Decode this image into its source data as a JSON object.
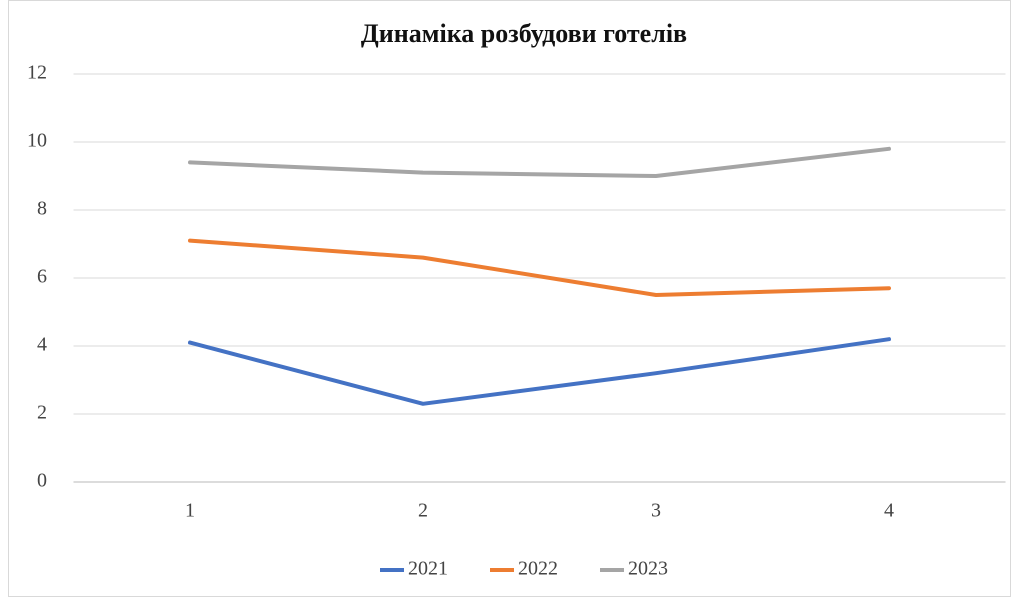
{
  "chart_data": {
    "type": "line",
    "title": "Динаміка розбудови готелів",
    "categories": [
      "1",
      "2",
      "3",
      "4"
    ],
    "series": [
      {
        "name": "2021",
        "color": "#4472c4",
        "values": [
          4.1,
          2.3,
          3.2,
          4.2
        ]
      },
      {
        "name": "2022",
        "color": "#ed7d31",
        "values": [
          7.1,
          6.6,
          5.5,
          5.7
        ]
      },
      {
        "name": "2023",
        "color": "#a5a5a5",
        "values": [
          9.4,
          9.1,
          9.0,
          9.8
        ]
      }
    ],
    "ylim": [
      0,
      12
    ],
    "yticks": [
      0,
      2,
      4,
      6,
      8,
      10,
      12
    ],
    "grid": true,
    "legend": "bottom"
  }
}
